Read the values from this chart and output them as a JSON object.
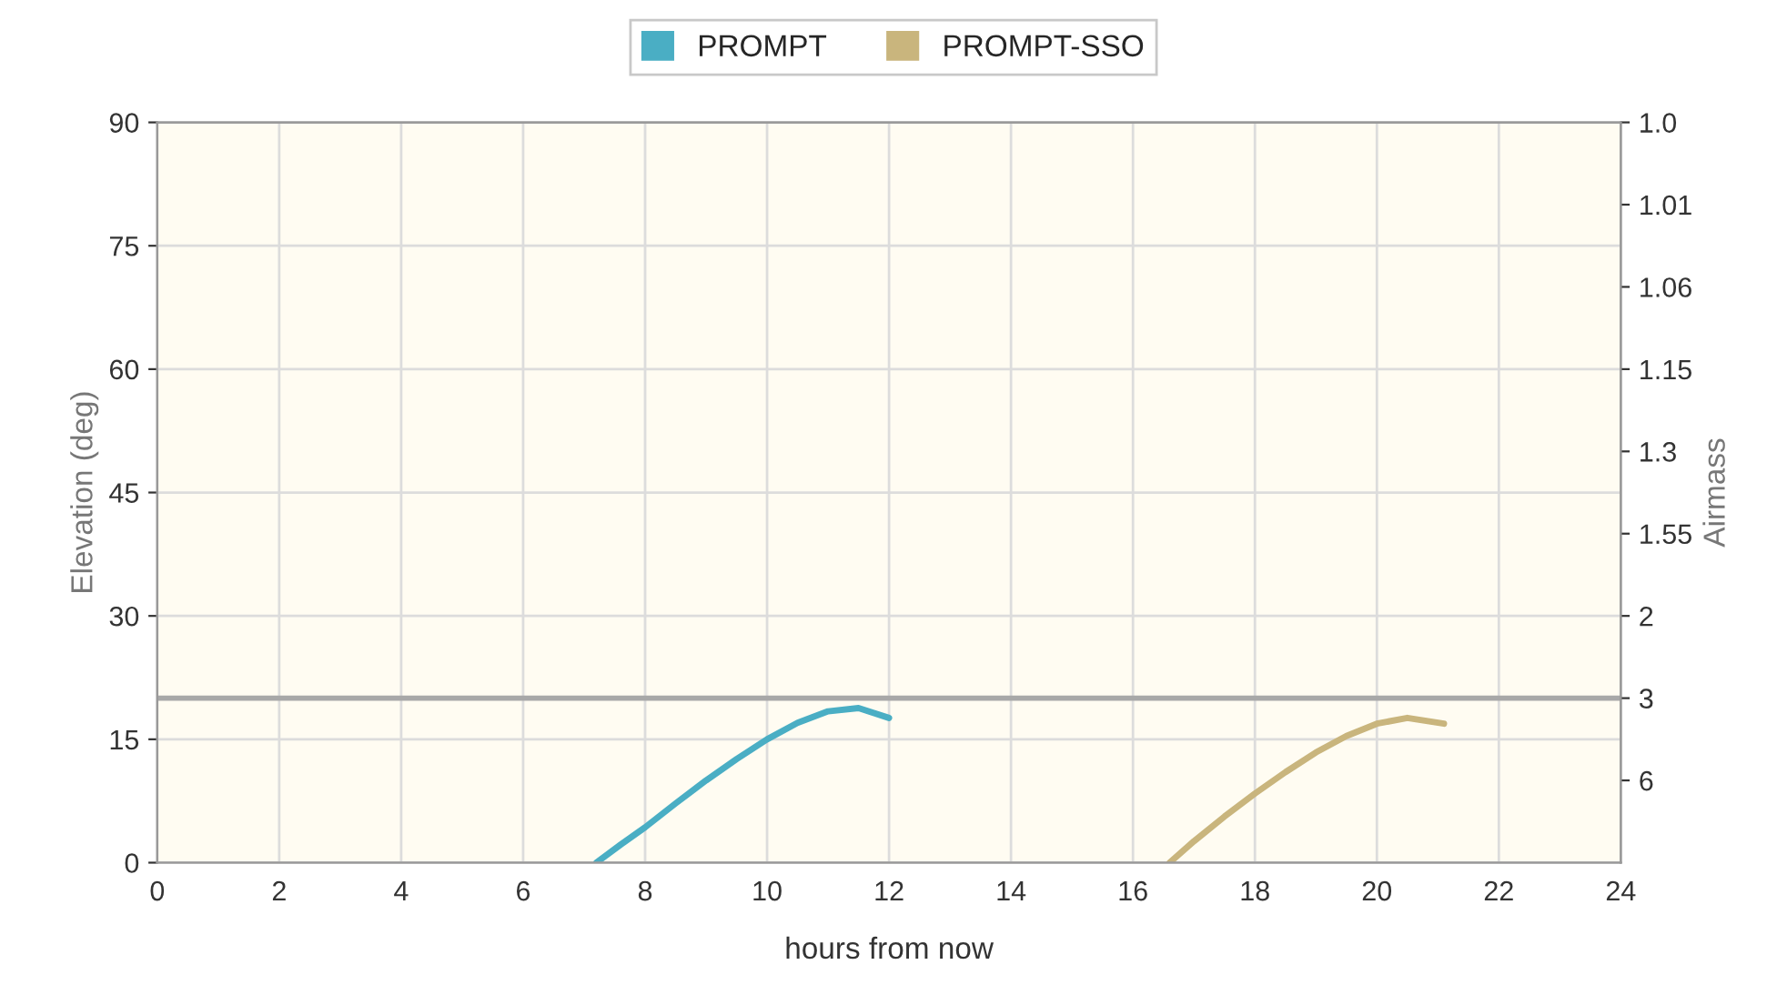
{
  "chart_data": {
    "type": "line",
    "xlabel": "hours from now",
    "ylabel": "Elevation (deg)",
    "y2label": "Airmass",
    "xlim": [
      0,
      24
    ],
    "xticks": [
      0,
      2,
      4,
      6,
      8,
      10,
      12,
      14,
      16,
      18,
      20,
      22,
      24
    ],
    "ylim": [
      0,
      90
    ],
    "yticks": [
      0,
      15,
      30,
      45,
      60,
      75,
      90
    ],
    "y2_categories": [
      "1.0",
      "1.01",
      "1.06",
      "1.15",
      "1.3",
      "1.55",
      "2",
      "3",
      "6",
      null
    ],
    "series": [
      {
        "name": "PROMPT",
        "color": "#4aaec4",
        "x": [
          7.2,
          7.6,
          8,
          8.5,
          9,
          9.5,
          10,
          10.5,
          11,
          11.5,
          12
        ],
        "values": [
          0,
          2.2,
          4.3,
          7.2,
          10,
          12.6,
          15,
          17,
          18.4,
          18.8,
          17.6
        ]
      },
      {
        "name": "PROMPT-SSO",
        "color": "#c9b57d",
        "x": [
          16.6,
          17,
          17.5,
          18,
          18.5,
          19,
          19.5,
          20,
          20.5,
          21.1
        ],
        "values": [
          0,
          2.6,
          5.6,
          8.4,
          11,
          13.4,
          15.4,
          16.9,
          17.6,
          16.9
        ]
      }
    ],
    "ref_lines": [
      {
        "axis": "y",
        "value": 20,
        "color": "#a8a8a8"
      }
    ],
    "grid": true,
    "legend": "top",
    "marker": "none",
    "line_style": "solid"
  }
}
